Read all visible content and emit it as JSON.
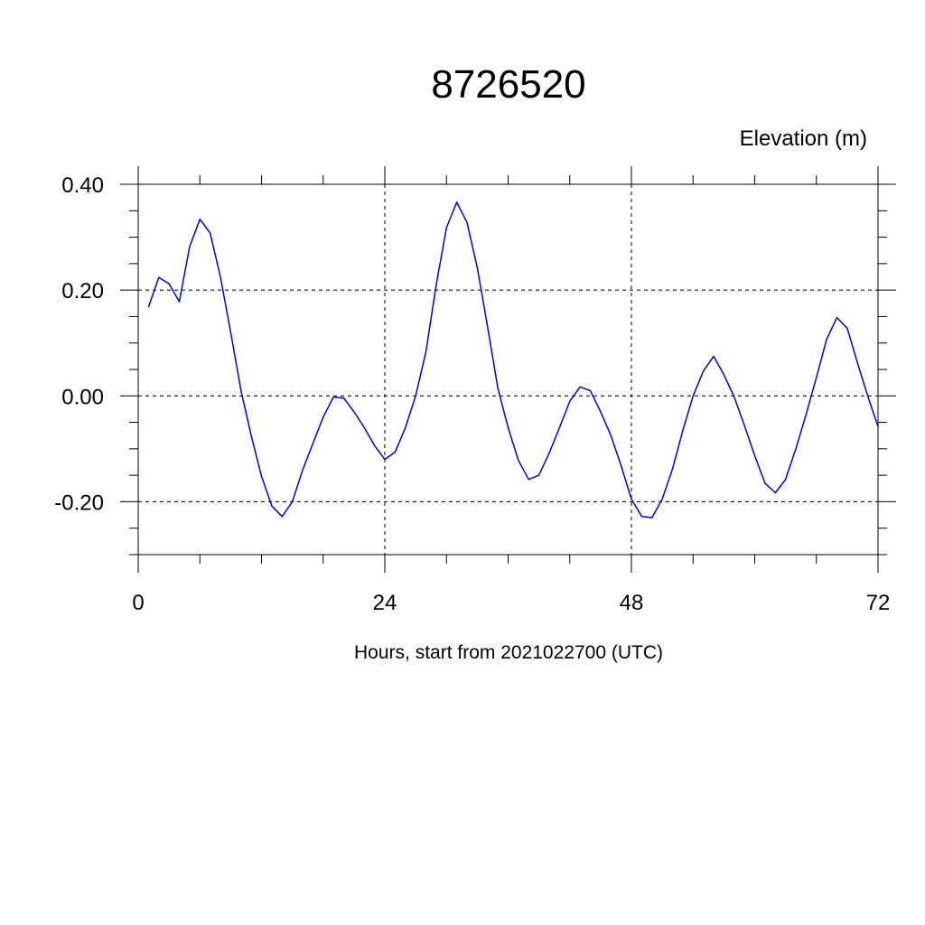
{
  "chart_data": {
    "type": "line",
    "title": "8726520",
    "ylabel": "Elevation (m)",
    "xlabel": "Hours, start from 2021022700 (UTC)",
    "xlim": [
      0,
      72
    ],
    "ylim": [
      -0.3,
      0.4
    ],
    "x_ticks": [
      0,
      24,
      48,
      72
    ],
    "x_tick_labels": [
      "0",
      "24",
      "48",
      "72"
    ],
    "y_ticks": [
      0.4,
      0.2,
      0.0,
      -0.2
    ],
    "y_tick_labels": [
      "0.40",
      "0.20",
      "0.00",
      "-0.20"
    ],
    "grid": true,
    "series": [
      {
        "color": "#0000ee",
        "x": [
          1,
          2,
          3,
          4,
          5,
          6,
          7,
          8,
          9,
          10,
          11,
          12,
          13,
          14,
          15,
          16,
          17,
          18,
          19,
          20,
          21,
          22,
          23,
          24,
          25,
          26,
          27,
          28,
          29,
          30,
          31,
          32,
          33,
          34,
          35,
          36,
          37,
          38,
          39,
          40,
          41,
          42,
          43,
          44,
          45,
          46,
          47,
          48,
          49,
          50,
          51,
          52,
          53,
          54,
          55,
          56,
          57,
          58,
          59,
          60,
          61,
          62,
          63,
          64,
          65,
          66,
          67,
          68,
          69,
          70,
          71,
          72
        ],
        "y": [
          0.168,
          0.224,
          0.212,
          0.178,
          0.282,
          0.334,
          0.308,
          0.225,
          0.12,
          0.01,
          -0.075,
          -0.152,
          -0.208,
          -0.228,
          -0.2,
          -0.14,
          -0.09,
          -0.04,
          -0.002,
          -0.004,
          -0.03,
          -0.06,
          -0.094,
          -0.12,
          -0.106,
          -0.06,
          0.0,
          0.083,
          0.21,
          0.318,
          0.366,
          0.328,
          0.242,
          0.13,
          0.015,
          -0.06,
          -0.122,
          -0.158,
          -0.15,
          -0.108,
          -0.06,
          -0.01,
          0.017,
          0.01,
          -0.03,
          -0.075,
          -0.132,
          -0.195,
          -0.228,
          -0.23,
          -0.195,
          -0.138,
          -0.065,
          0.0,
          0.047,
          0.075,
          0.04,
          -0.002,
          -0.056,
          -0.113,
          -0.165,
          -0.183,
          -0.158,
          -0.1,
          -0.035,
          0.035,
          0.107,
          0.148,
          0.128,
          0.062,
          0.0,
          -0.058
        ]
      }
    ]
  }
}
